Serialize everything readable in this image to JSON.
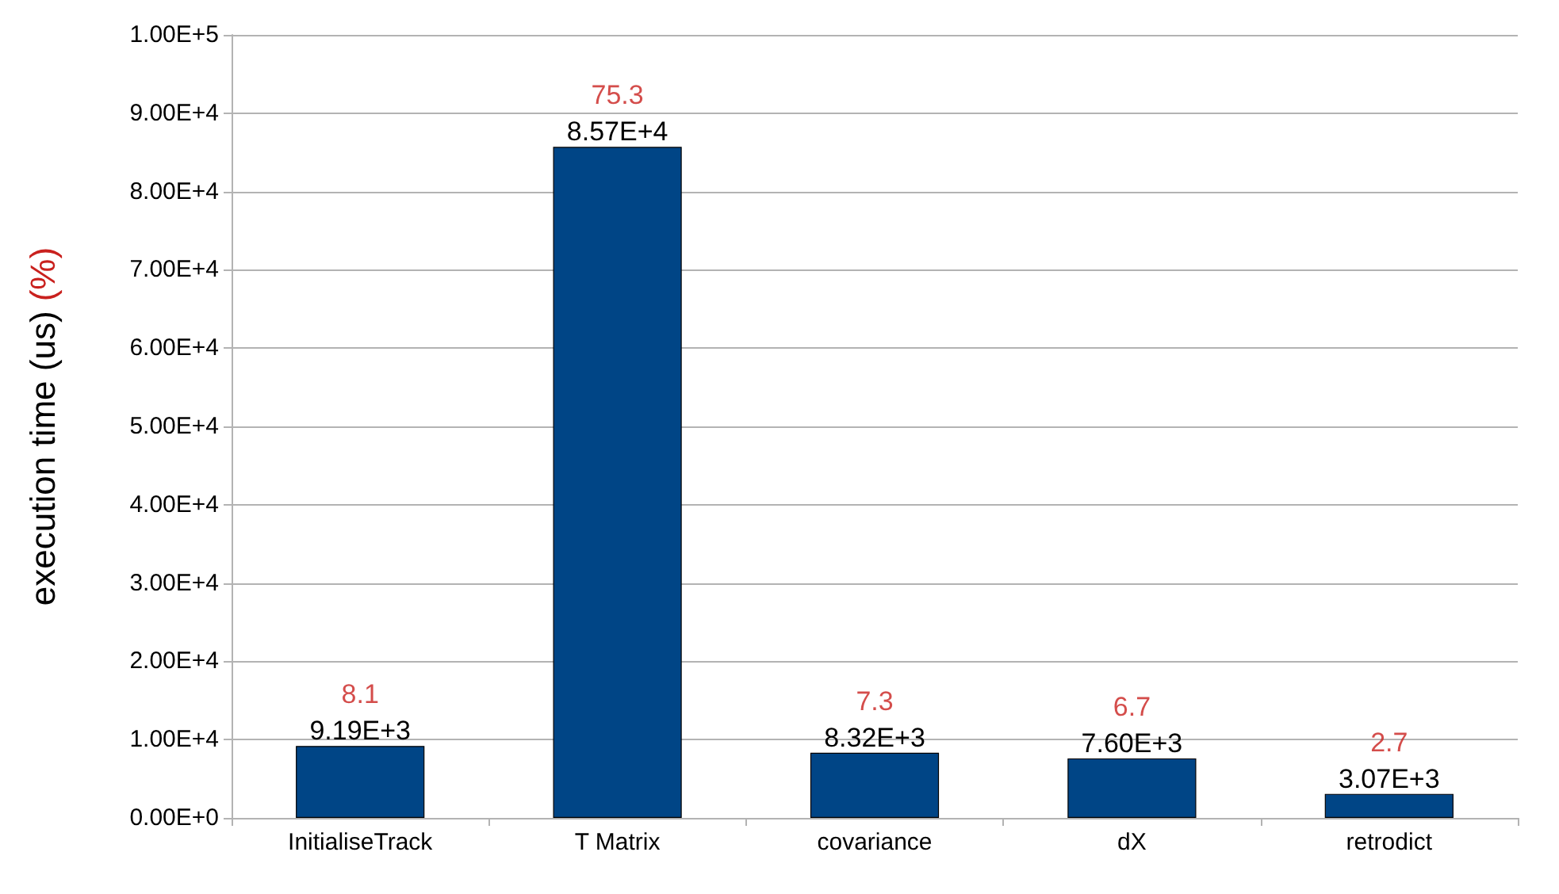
{
  "chart_data": {
    "type": "bar",
    "ylabel": "execution time (us) (%)",
    "categories": [
      "InitialiseTrack",
      "T Matrix",
      "covariance",
      "dX",
      "retrodict"
    ],
    "values": [
      9190,
      85700,
      8320,
      7600,
      3070
    ],
    "value_labels": [
      "9.19E+3",
      "8.57E+4",
      "8.32E+3",
      "7.60E+3",
      "3.07E+3"
    ],
    "color": "#004586",
    "ylim": [
      0,
      100000
    ],
    "yticks": [
      {
        "value": 0,
        "label": "0.00E+0"
      },
      {
        "value": 10000,
        "label": "1.00E+4"
      },
      {
        "value": 20000,
        "label": "2.00E+4"
      },
      {
        "value": 30000,
        "label": "3.00E+4"
      },
      {
        "value": 40000,
        "label": "4.00E+4"
      },
      {
        "value": 50000,
        "label": "5.00E+4"
      },
      {
        "value": 60000,
        "label": "6.00E+4"
      },
      {
        "value": 70000,
        "label": "7.00E+4"
      },
      {
        "value": 80000,
        "label": "8.00E+4"
      },
      {
        "value": 90000,
        "label": "9.00E+4"
      },
      {
        "value": 100000,
        "label": "1.00E+5"
      }
    ],
    "grid": "y",
    "annotations": [
      {
        "text": "8.1",
        "x": "InitialiseTrack",
        "y": 9190
      },
      {
        "text": "75.3",
        "x": "T Matrix",
        "y": 85700
      },
      {
        "text": "7.3",
        "x": "covariance",
        "y": 8320
      },
      {
        "text": "6.7",
        "x": "dX",
        "y": 7600
      },
      {
        "text": "2.7",
        "x": "retrodict",
        "y": 3070
      }
    ]
  }
}
